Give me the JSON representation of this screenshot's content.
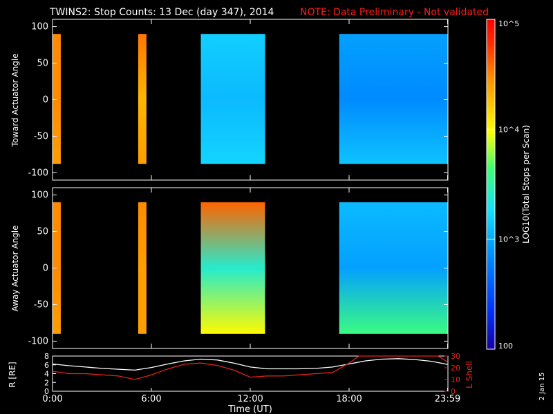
{
  "header": {
    "title": "TWINS2: Stop Counts: 13 Dec (day 347), 2014",
    "note": "NOTE: Data Preliminary - Not validated"
  },
  "colors": {
    "background": "#000000",
    "axes": "#ffffff",
    "note": "#ff1a1a",
    "lshell": "#e8221a",
    "radius": "#ffffff"
  },
  "colorbar": {
    "label": "LOG10(Total Stops per Scan)",
    "tick_labels": [
      "10^5",
      "10^4",
      "10^3",
      "100"
    ],
    "tick_values": [
      100000,
      10000,
      1000,
      100
    ],
    "range": [
      100,
      100000
    ],
    "scale": "log"
  },
  "x_axis": {
    "label": "Time (UT)",
    "tick_labels": [
      "0:00",
      "6:00",
      "12:00",
      "18:00",
      "23:59"
    ],
    "tick_values": [
      0,
      6,
      12,
      18,
      23.98
    ],
    "range": [
      0,
      24
    ],
    "units": "hours"
  },
  "footer": {
    "stamp": "2 Jan 15"
  },
  "chart_data": [
    {
      "type": "heatmap",
      "ylabel": "Toward Actuator Angle",
      "ylim": [
        -110,
        110
      ],
      "yticks": [
        -100,
        -50,
        0,
        50,
        100
      ],
      "angle_range": [
        -88,
        90
      ],
      "blocks": [
        {
          "t_start": 0.0,
          "t_end": 0.5,
          "stops_top": 30000,
          "stops_mid": 30000,
          "stops_bottom": 25000
        },
        {
          "t_start": 5.2,
          "t_end": 5.7,
          "stops_top": 35000,
          "stops_mid": 20000,
          "stops_bottom": 25000
        },
        {
          "t_start": 9.0,
          "t_end": 12.9,
          "stops_top": 1500,
          "stops_mid": 1200,
          "stops_bottom": 1600
        },
        {
          "t_start": 17.4,
          "t_end": 23.98,
          "stops_top": 900,
          "stops_mid": 700,
          "stops_bottom": 1300
        }
      ]
    },
    {
      "type": "heatmap",
      "ylabel": "Away Actuator Angle",
      "ylim": [
        -110,
        110
      ],
      "yticks": [
        -100,
        -50,
        0,
        50,
        100
      ],
      "angle_range": [
        -90,
        90
      ],
      "blocks": [
        {
          "t_start": 0.0,
          "t_end": 0.5,
          "stops_top": 30000,
          "stops_mid": 30000,
          "stops_bottom": 25000
        },
        {
          "t_start": 5.2,
          "t_end": 5.7,
          "stops_top": 30000,
          "stops_mid": 25000,
          "stops_bottom": 25000
        },
        {
          "t_start": 9.0,
          "t_end": 12.9,
          "stops_top": 40000,
          "stops_mid": 2500,
          "stops_bottom": 10000
        },
        {
          "t_start": 17.4,
          "t_end": 23.98,
          "stops_top": 1200,
          "stops_mid": 900,
          "stops_bottom": 4000
        }
      ]
    },
    {
      "type": "line",
      "ylabel": "R [RE]",
      "ylabel_right": "L Shell",
      "ylim": [
        0,
        8
      ],
      "yticks": [
        0,
        2,
        4,
        6,
        8
      ],
      "ylim_right": [
        0,
        30
      ],
      "yticks_right": [
        0,
        10,
        20,
        30
      ],
      "series": [
        {
          "axis": "left",
          "x": [
            0,
            1,
            2,
            3,
            4,
            5,
            6,
            7,
            8,
            9,
            10,
            11,
            12,
            13,
            14,
            15,
            16,
            17,
            18,
            19,
            20,
            21,
            22,
            23,
            23.98
          ],
          "y": [
            6.2,
            5.8,
            5.5,
            5.2,
            5.0,
            4.8,
            5.4,
            6.2,
            6.9,
            7.3,
            7.1,
            6.4,
            5.5,
            5.1,
            5.1,
            5.1,
            5.2,
            5.5,
            6.2,
            6.9,
            7.3,
            7.4,
            7.2,
            6.8,
            6.1
          ]
        },
        {
          "axis": "right",
          "x": [
            0,
            1,
            2,
            3,
            4,
            5,
            6,
            7,
            8,
            9,
            10,
            11,
            12,
            13,
            14,
            15,
            16,
            17,
            18,
            18.6,
            23.4,
            23.98
          ],
          "y": [
            17,
            15,
            15,
            14,
            13,
            10,
            14,
            19,
            23,
            24,
            22,
            18,
            12,
            13,
            13,
            14,
            15,
            16,
            24,
            31,
            31,
            25
          ]
        }
      ]
    }
  ]
}
